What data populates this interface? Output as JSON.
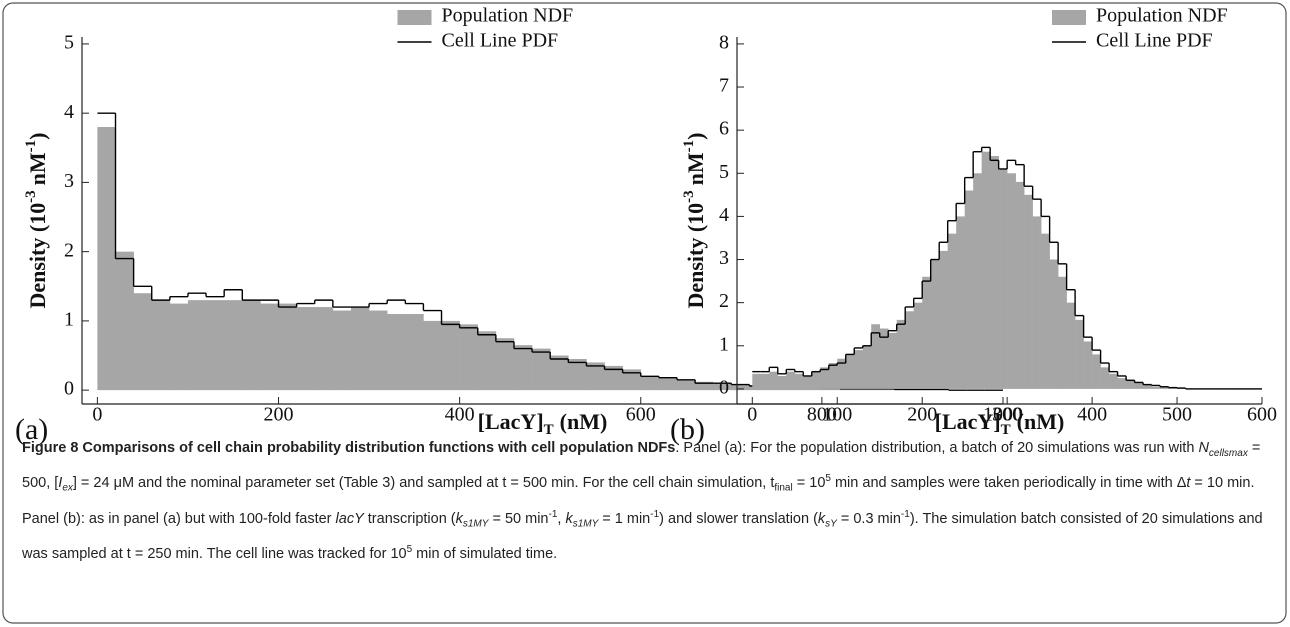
{
  "chart_data": [
    {
      "type": "histogram",
      "panel_label": "(a)",
      "xlabel_parts": [
        "[LacY]",
        "T",
        "(nM)"
      ],
      "ylabel_parts": [
        "Density (10",
        "-3",
        "nM",
        "-1",
        ")"
      ],
      "bins": [
        0,
        20,
        40,
        60,
        80,
        100,
        120,
        140,
        160,
        180,
        200,
        220,
        240,
        260,
        280,
        300,
        320,
        340,
        360,
        380,
        400,
        420,
        440,
        460,
        480,
        500,
        520,
        540,
        560,
        580,
        600,
        620,
        640,
        660,
        680,
        700,
        720,
        740,
        760,
        780,
        800,
        820,
        840,
        860,
        880,
        900,
        920,
        940,
        960,
        980,
        1000
      ],
      "series": [
        {
          "name": "Population NDF",
          "color": "#a6a6a6",
          "values": [
            3.8,
            2.0,
            1.4,
            1.3,
            1.25,
            1.3,
            1.3,
            1.3,
            1.3,
            1.25,
            1.25,
            1.2,
            1.2,
            1.15,
            1.2,
            1.15,
            1.1,
            1.1,
            1.0,
            1.0,
            0.95,
            0.85,
            0.75,
            0.65,
            0.6,
            0.5,
            0.45,
            0.4,
            0.35,
            0.3,
            0.2,
            0.18,
            0.15,
            0.12,
            0.1,
            0.08,
            0.07,
            0.06,
            0.05,
            0.04,
            0.03,
            0.03,
            0.02,
            0.02,
            0.01,
            0.01,
            0.01,
            0,
            0,
            0
          ]
        },
        {
          "name": "Cell Line PDF",
          "color": "#000000",
          "values": [
            4.0,
            1.9,
            1.5,
            1.3,
            1.35,
            1.4,
            1.35,
            1.45,
            1.3,
            1.3,
            1.2,
            1.25,
            1.3,
            1.2,
            1.2,
            1.25,
            1.3,
            1.25,
            1.15,
            0.95,
            0.9,
            0.8,
            0.7,
            0.6,
            0.55,
            0.45,
            0.4,
            0.35,
            0.3,
            0.25,
            0.2,
            0.18,
            0.15,
            0.1,
            0.1,
            0.08,
            0.06,
            0.05,
            0.05,
            0.04,
            0.03,
            0.02,
            0.02,
            0.02,
            0.01,
            0.01,
            0.01,
            0,
            0,
            0
          ]
        }
      ],
      "xlim": [
        -17,
        1000
      ],
      "ylim": [
        -0.2,
        5.1
      ],
      "xticks": [
        0,
        200,
        400,
        600,
        800,
        1000
      ],
      "yticks": [
        0,
        1,
        2,
        3,
        4,
        5
      ],
      "legend": "upper center"
    },
    {
      "type": "histogram",
      "panel_label": "(b)",
      "xlabel_parts": [
        "[LacY]",
        "T",
        "(nM)"
      ],
      "ylabel_parts": [
        "Density (10",
        "-3",
        "nM",
        "-1",
        ")"
      ],
      "bins": [
        0,
        10,
        20,
        30,
        40,
        50,
        60,
        70,
        80,
        90,
        100,
        110,
        120,
        130,
        140,
        150,
        160,
        170,
        180,
        190,
        200,
        210,
        220,
        230,
        240,
        250,
        260,
        270,
        280,
        290,
        300,
        310,
        320,
        330,
        340,
        350,
        360,
        370,
        380,
        390,
        400,
        410,
        420,
        430,
        440,
        450,
        460,
        470,
        480,
        490,
        500,
        510,
        520,
        530,
        540,
        550,
        560,
        570,
        580,
        590,
        600
      ],
      "series": [
        {
          "name": "Population NDF",
          "color": "#a6a6a6",
          "values": [
            0.35,
            0.35,
            0.4,
            0.3,
            0.4,
            0.35,
            0.3,
            0.4,
            0.5,
            0.6,
            0.7,
            0.8,
            0.9,
            1.0,
            1.5,
            1.4,
            1.3,
            1.6,
            1.8,
            2.0,
            2.6,
            3.0,
            3.2,
            3.6,
            4.0,
            4.6,
            5.0,
            5.5,
            5.4,
            5.1,
            5.0,
            4.8,
            4.5,
            4.0,
            3.6,
            3.0,
            2.6,
            2.0,
            1.6,
            1.1,
            0.8,
            0.5,
            0.35,
            0.25,
            0.2,
            0.15,
            0.1,
            0.05,
            0.04,
            0.02,
            0.01,
            0,
            0,
            0,
            0,
            0,
            0,
            0,
            0,
            0
          ]
        },
        {
          "name": "Cell Line PDF",
          "color": "#000000",
          "values": [
            0.4,
            0.4,
            0.5,
            0.35,
            0.45,
            0.4,
            0.3,
            0.4,
            0.45,
            0.55,
            0.6,
            0.8,
            0.95,
            1.0,
            1.3,
            1.2,
            1.35,
            1.5,
            1.9,
            2.1,
            2.5,
            3.0,
            3.4,
            3.9,
            4.3,
            4.9,
            5.5,
            5.6,
            5.3,
            5.1,
            5.3,
            5.2,
            4.7,
            4.4,
            4.0,
            3.4,
            2.9,
            2.3,
            1.7,
            1.2,
            0.9,
            0.6,
            0.4,
            0.3,
            0.2,
            0.15,
            0.1,
            0.08,
            0.05,
            0.03,
            0.02,
            0,
            0,
            0,
            0,
            0,
            0,
            0,
            0,
            0
          ]
        }
      ],
      "xlim": [
        -18,
        600
      ],
      "ylim": [
        -0.35,
        8.16
      ],
      "xticks": [
        0,
        100,
        200,
        300,
        400,
        500,
        600
      ],
      "yticks": [
        0,
        1,
        2,
        3,
        4,
        5,
        6,
        7,
        8
      ],
      "legend": "upper right"
    }
  ],
  "caption": {
    "runs": [
      {
        "text": "Figure 8 Comparisons of cell chain probability distribution functions with cell population NDFs",
        "style": "b"
      },
      {
        "text": ". Panel (a): For the population distribution, a batch of 20 simulations was run with ",
        "style": ""
      },
      {
        "text": "N",
        "style": "i"
      },
      {
        "text": "cellsmax",
        "style": "isub"
      },
      {
        "text": " = 500, [",
        "style": ""
      },
      {
        "text": "I",
        "style": "i"
      },
      {
        "text": "ex",
        "style": "isub"
      },
      {
        "text": "] = 24 μM and the nominal parameter set (Table 3) and sampled at t = 500 min. For the cell chain simulation, t",
        "style": ""
      },
      {
        "text": "final",
        "style": "sub"
      },
      {
        "text": " = 10",
        "style": ""
      },
      {
        "text": "5",
        "style": "sup"
      },
      {
        "text": " min and samples were taken periodically in time with Δ",
        "style": ""
      },
      {
        "text": "t",
        "style": "i"
      },
      {
        "text": " = 10 min. Panel (b): as in panel (a) but with 100-fold faster ",
        "style": ""
      },
      {
        "text": "lacY",
        "style": "i"
      },
      {
        "text": " transcription (",
        "style": ""
      },
      {
        "text": "k",
        "style": "i"
      },
      {
        "text": "s1MY",
        "style": "isub"
      },
      {
        "text": " = 50 min",
        "style": ""
      },
      {
        "text": "-1",
        "style": "sup"
      },
      {
        "text": ", ",
        "style": ""
      },
      {
        "text": "k",
        "style": "i"
      },
      {
        "text": "s1MY",
        "style": "isub"
      },
      {
        "text": " = 1 min",
        "style": ""
      },
      {
        "text": "-1",
        "style": "sup"
      },
      {
        "text": ") and slower translation (",
        "style": ""
      },
      {
        "text": "k",
        "style": "i"
      },
      {
        "text": "sY",
        "style": "isub"
      },
      {
        "text": " = 0.3 min",
        "style": ""
      },
      {
        "text": "-1",
        "style": "sup"
      },
      {
        "text": "). The simulation batch consisted of 20 simulations and was sampled at t = 250 min. The cell line was tracked for 10",
        "style": ""
      },
      {
        "text": "5",
        "style": "sup"
      },
      {
        "text": " min of simulated time.",
        "style": ""
      }
    ]
  }
}
